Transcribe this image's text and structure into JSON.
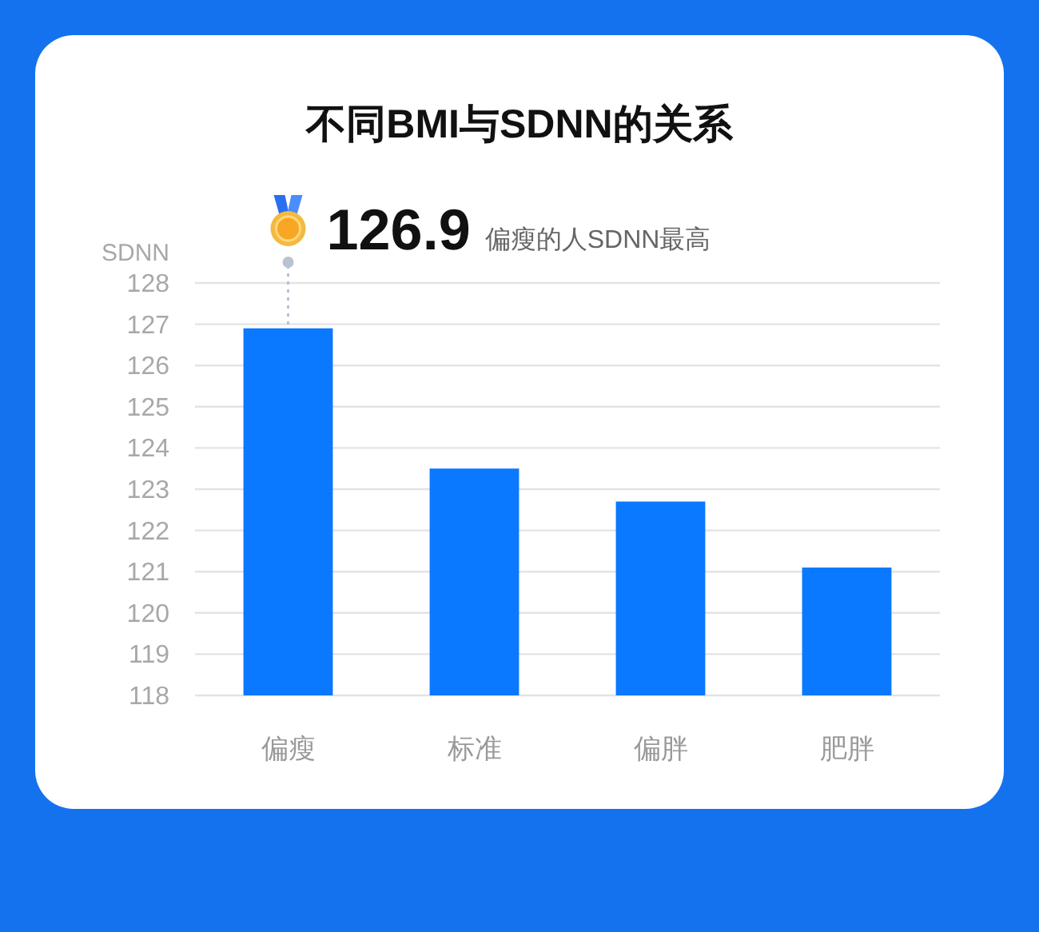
{
  "chart_data": {
    "type": "bar",
    "title": "不同BMI与SDNN的关系",
    "ylabel": "SDNN",
    "categories": [
      "偏瘦",
      "标准",
      "偏胖",
      "肥胖"
    ],
    "values": [
      126.9,
      123.5,
      122.7,
      121.1
    ],
    "color": "#0a78ff",
    "ylim": [
      118,
      128
    ],
    "yticks": [
      118,
      119,
      120,
      121,
      122,
      123,
      124,
      125,
      126,
      127,
      128
    ],
    "grid": "y",
    "annotations": [
      {
        "text": "126.9",
        "x": "偏瘦",
        "y": 126.9
      },
      "偏瘦的人SDNN最高"
    ]
  }
}
